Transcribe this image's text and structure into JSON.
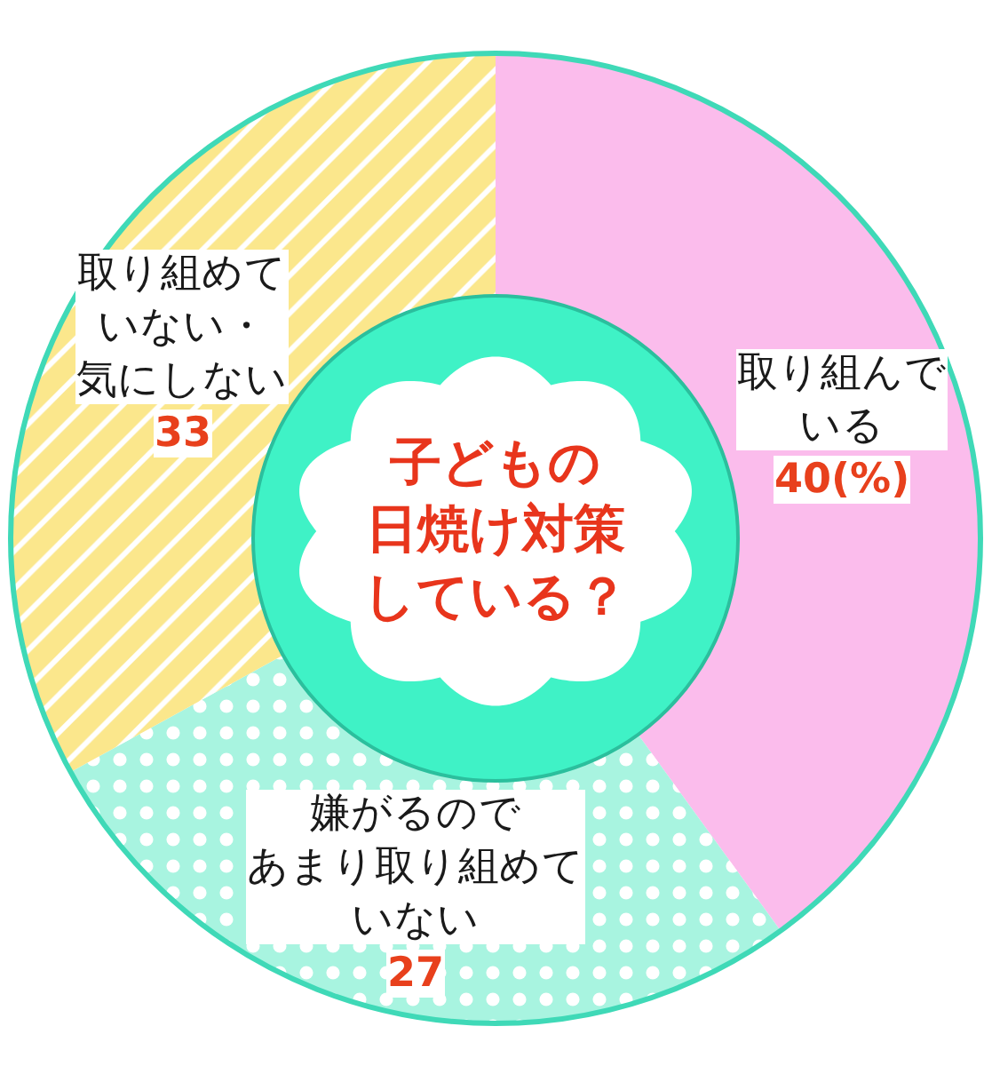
{
  "chart_data": {
    "type": "donut",
    "title": "子どもの日焼け対策している？",
    "categories": [
      "取り組んでいる",
      "嫌がるのであまり取り組めていない",
      "取り組めていない・気にしない"
    ],
    "values": [
      40,
      27,
      33
    ],
    "colors": [
      "#fbbcec",
      "#a8f4e0",
      "#fbe78c"
    ],
    "value_labels": [
      "40(%)",
      "27",
      "33"
    ],
    "legend": false
  }
}
